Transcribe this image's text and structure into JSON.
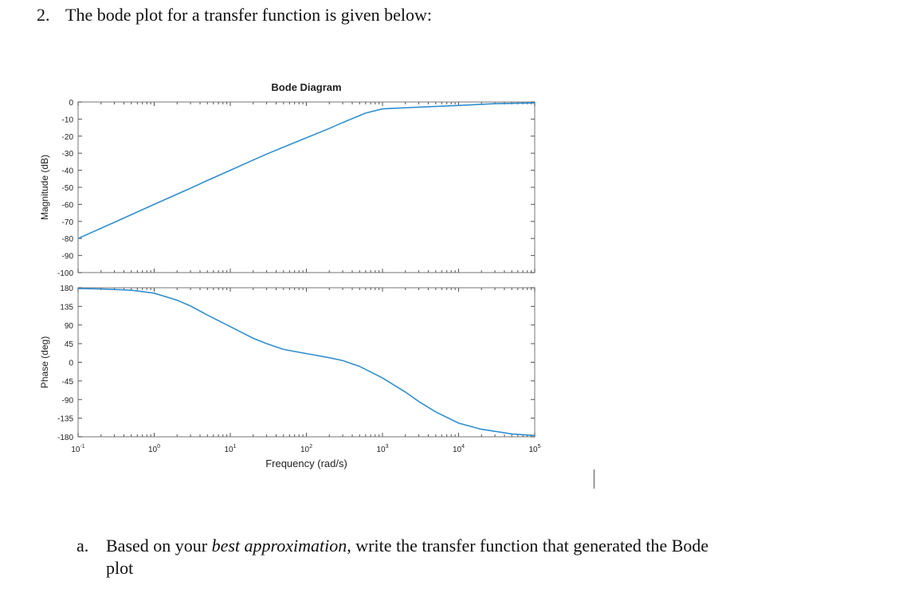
{
  "question": {
    "number": "2.",
    "text": "The bode plot for a transfer function is given below:"
  },
  "subquestion": {
    "letter": "a.",
    "text_before": "Based on your ",
    "text_emphasis": "best approximation",
    "text_after": ", write the transfer function that generated the Bode plot"
  },
  "colors": {
    "line": "#2f8fd0",
    "frame": "#8c8c8c",
    "text": "#222222"
  },
  "chart_data": [
    {
      "type": "line",
      "title": "Bode Diagram",
      "ylabel": "Magnitude (dB)",
      "xlabel": "",
      "xscale": "log",
      "xlim": [
        0.1,
        100000
      ],
      "ylim": [
        -100,
        0
      ],
      "yticks": [
        0,
        -10,
        -20,
        -30,
        -40,
        -50,
        -60,
        -70,
        -80,
        -90,
        -100
      ],
      "series": [
        {
          "x": [
            0.1,
            0.3,
            1,
            2,
            3,
            5,
            10,
            20,
            30,
            60,
            100,
            200,
            300,
            600,
            1000,
            3000,
            10000,
            30000,
            100000
          ],
          "y": [
            -80,
            -70.5,
            -60,
            -54,
            -50.5,
            -46,
            -40,
            -34,
            -30.5,
            -25,
            -21,
            -15.5,
            -12,
            -6.5,
            -4,
            -3,
            -2,
            -1,
            -0.5
          ]
        }
      ]
    },
    {
      "type": "line",
      "ylabel": "Phase (deg)",
      "xlabel": "Frequency  (rad/s)",
      "xscale": "log",
      "xlim": [
        0.1,
        100000
      ],
      "ylim": [
        -180,
        180
      ],
      "yticks": [
        180,
        135,
        90,
        45,
        0,
        -45,
        -90,
        -135,
        -180
      ],
      "xticks": [
        "10^-1",
        "10^0",
        "10^1",
        "10^2",
        "10^3",
        "10^4",
        "10^5"
      ],
      "series": [
        {
          "x": [
            0.1,
            0.2,
            0.5,
            1,
            2,
            3,
            5,
            10,
            20,
            30,
            50,
            100,
            200,
            300,
            500,
            1000,
            2000,
            3000,
            5000,
            10000,
            20000,
            50000,
            100000
          ],
          "y": [
            178,
            177,
            174,
            167,
            150,
            136,
            114,
            86,
            58,
            45,
            31,
            21,
            11,
            4,
            -10,
            -38,
            -72,
            -95,
            -120,
            -147,
            -162,
            -173,
            -177
          ]
        }
      ]
    }
  ]
}
